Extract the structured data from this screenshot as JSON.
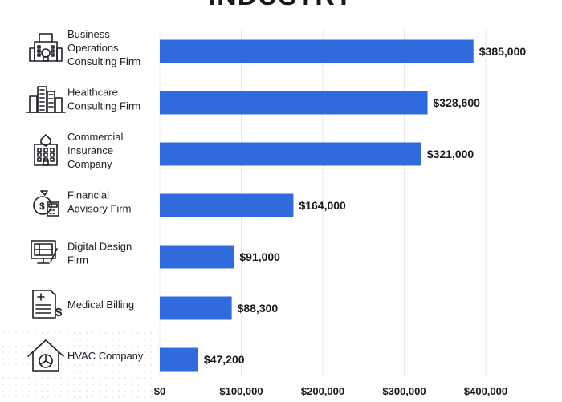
{
  "title": "INDUSTRY",
  "chart_data": {
    "type": "bar",
    "orientation": "horizontal",
    "title": "INDUSTRY",
    "categories": [
      "Business Operations Consulting Firm",
      "Healthcare Consulting Firm",
      "Commercial Insurance Company",
      "Financial Advisory Firm",
      "Digital Design Firm",
      "Medical Billing",
      "HVAC Company"
    ],
    "category_lines": [
      [
        "Business",
        "Operations",
        "Consulting Firm"
      ],
      [
        "Healthcare",
        "Consulting Firm"
      ],
      [
        "Commercial",
        "Insurance",
        "Company"
      ],
      [
        "Financial",
        "Advisory Firm"
      ],
      [
        "Digital Design",
        "Firm"
      ],
      [
        "Medical Billing"
      ],
      [
        "HVAC Company"
      ]
    ],
    "icons": [
      "office-building-icon",
      "city-buildings-icon",
      "insurance-building-icon",
      "money-bag-calculator-icon",
      "design-monitor-icon",
      "medical-bill-icon",
      "hvac-house-fan-icon"
    ],
    "values": [
      385000,
      328600,
      321000,
      164000,
      91000,
      88300,
      47200
    ],
    "value_labels": [
      "$385,000",
      "$328,600",
      "$321,000",
      "$164,000",
      "$91,000",
      "$88,300",
      "$47,200"
    ],
    "xlim": [
      0,
      400000
    ],
    "xticks": [
      0,
      100000,
      200000,
      300000,
      400000
    ],
    "xtick_labels": [
      "$0",
      "$100,000",
      "$200,000",
      "$300,000",
      "$400,000"
    ],
    "xlabel": "",
    "ylabel": "",
    "grid": true,
    "bar_color": "#2f6bdc",
    "grid_color": "#e7e9ee"
  }
}
